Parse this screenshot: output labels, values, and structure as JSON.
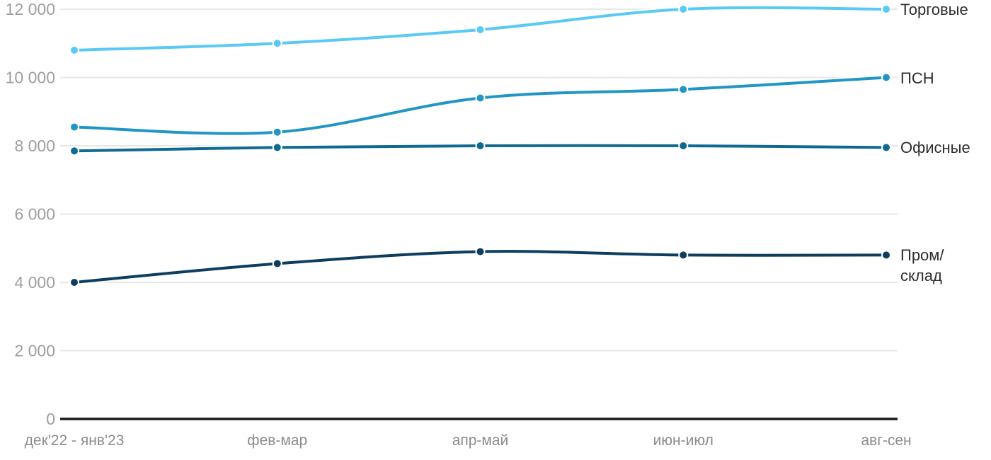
{
  "chart_data": {
    "type": "line",
    "title": "",
    "xlabel": "",
    "ylabel": "",
    "categories": [
      "дек'22 - янв'23",
      "фев-мар",
      "апр-май",
      "июн-июл",
      "авг-сен"
    ],
    "series": [
      {
        "name": "Торговые",
        "label_lines": [
          "Торговые"
        ],
        "color": "#5bc9f5",
        "values": [
          10800,
          11000,
          11400,
          12000,
          12000
        ]
      },
      {
        "name": "ПСН",
        "label_lines": [
          "ПСН"
        ],
        "color": "#2196c4",
        "values": [
          8550,
          8400,
          9400,
          9650,
          10000
        ]
      },
      {
        "name": "Офисные",
        "label_lines": [
          "Офисные"
        ],
        "color": "#0f6a90",
        "values": [
          7850,
          7950,
          8000,
          8000,
          7950
        ]
      },
      {
        "name": "Пром/склад",
        "label_lines": [
          "Пром/",
          "склад"
        ],
        "color": "#0e3d5f",
        "values": [
          4000,
          4550,
          4900,
          4800,
          4800
        ]
      }
    ],
    "ylim": [
      0,
      12000
    ],
    "yticks": [
      0,
      2000,
      4000,
      6000,
      8000,
      10000,
      12000
    ],
    "ytick_labels": [
      "0",
      "2 000",
      "4 000",
      "6 000",
      "8 000",
      "10 000",
      "12 000"
    ],
    "grid": true,
    "legend_position": "right-of-last-point"
  },
  "colors": {
    "background": "#ffffff",
    "grid": "#e7e7e7",
    "axis": "#1a1a1a",
    "y_tick_label": "#9e9e9e",
    "x_tick_label": "#8c8c8c",
    "series_label": "#2e2e2e",
    "halo": "#ffffff"
  }
}
